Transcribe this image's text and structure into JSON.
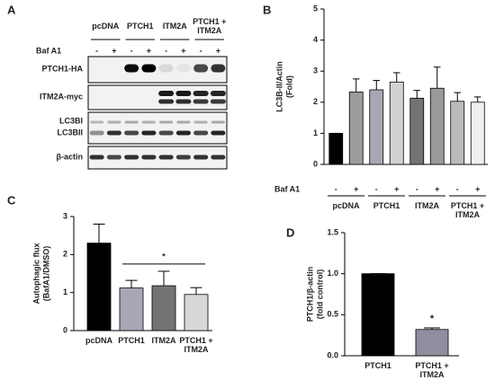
{
  "figure": {
    "panel_labels": [
      "A",
      "B",
      "C",
      "D"
    ]
  },
  "blot": {
    "groups": [
      "pcDNA",
      "PTCH1",
      "ITM2A",
      "PTCH1 + ITM2A"
    ],
    "treatment_label": "Baf A1",
    "signs": [
      "-",
      "+",
      "-",
      "+",
      "-",
      "+",
      "-",
      "+"
    ],
    "rows": [
      "PTCH1-HA",
      "ITM2A-myc",
      "LC3BI",
      "LC3BII",
      "β-actin"
    ]
  },
  "chart_data": [
    {
      "type": "bar",
      "ylabel": [
        "LC3B-II/Actin",
        "(Fold)"
      ],
      "treatment_label": "Baf A1",
      "categories": [
        "-",
        "+",
        "-",
        "+",
        "-",
        "+",
        "-",
        "+"
      ],
      "groups": [
        "pcDNA",
        "PTCH1",
        "ITM2A",
        "PTCH1 + ITM2A"
      ],
      "values": [
        1.0,
        2.33,
        2.4,
        2.65,
        2.13,
        2.45,
        2.03,
        2.0
      ],
      "errors": [
        0,
        0.42,
        0.3,
        0.3,
        0.25,
        0.68,
        0.28,
        0.17
      ],
      "colors": [
        "#000000",
        "#9c9c9c",
        "#a7a7b6",
        "#d2d2d2",
        "#737373",
        "#9a9a9a",
        "#bbbbbb",
        "#efefef"
      ],
      "ylim": [
        0,
        5
      ],
      "yticks": [
        0,
        1,
        2,
        3,
        4,
        5
      ]
    },
    {
      "type": "bar",
      "ylabel": [
        "Autophagic flux",
        "(BafA1/DMSO)"
      ],
      "categories": [
        "pcDNA",
        "PTCH1",
        "ITM2A",
        "PTCH1 + ITM2A"
      ],
      "values": [
        2.3,
        1.12,
        1.18,
        0.95
      ],
      "errors": [
        0.5,
        0.2,
        0.38,
        0.18
      ],
      "colors": [
        "#000000",
        "#a7a7b6",
        "#737373",
        "#d8d8d8"
      ],
      "annotation": "*",
      "ylim": [
        0,
        3
      ],
      "yticks": [
        0,
        1,
        2,
        3
      ]
    },
    {
      "type": "bar",
      "ylabel": [
        "PTCH1/β-actin",
        "(fold control)"
      ],
      "categories": [
        "PTCH1",
        "PTCH1 + ITM2A"
      ],
      "values": [
        1.0,
        0.32
      ],
      "errors": [
        0,
        0.02
      ],
      "colors": [
        "#000000",
        "#8e8e9e"
      ],
      "annotation": "*",
      "ylim": [
        0,
        1.5
      ],
      "yticks": [
        {
          "value": 0,
          "label": "0.0"
        },
        {
          "value": 0.5,
          "label": "0.5"
        },
        {
          "value": 1,
          "label": "1.0"
        },
        {
          "value": 1.5,
          "label": "1.5"
        }
      ]
    }
  ]
}
